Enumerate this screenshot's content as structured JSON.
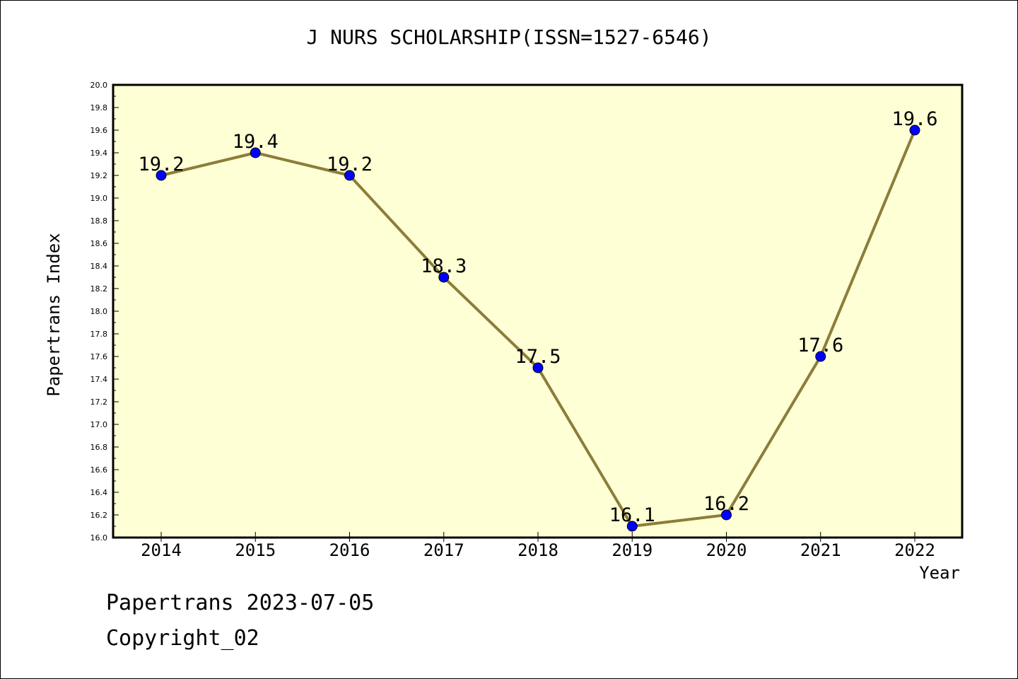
{
  "chart_data": {
    "type": "line",
    "title": "J NURS SCHOLARSHIP(ISSN=1527-6546)",
    "xlabel": "Year",
    "ylabel": "Papertrans Index",
    "categories": [
      "2014",
      "2015",
      "2016",
      "2017",
      "2018",
      "2019",
      "2020",
      "2021",
      "2022"
    ],
    "series": [
      {
        "values": [
          19.2,
          19.4,
          19.2,
          18.3,
          17.5,
          16.1,
          16.2,
          17.6,
          19.6
        ],
        "data_labels": [
          "19.2",
          "19.4",
          "19.2",
          "18.3",
          "17.5",
          "16.1",
          "16.2",
          "17.6",
          "19.6"
        ],
        "line_color": "#8b7d3a",
        "marker_color": "#0000ff"
      }
    ],
    "ylim": [
      16.0,
      20.0
    ],
    "y_ticks": [
      "16.0",
      "16.2",
      "16.4",
      "16.6",
      "16.8",
      "17.0",
      "17.2",
      "17.4",
      "17.6",
      "17.8",
      "18.0",
      "18.2",
      "18.4",
      "18.6",
      "18.8",
      "19.0",
      "19.2",
      "19.4",
      "19.6",
      "19.8",
      "20.0"
    ],
    "grid": false,
    "plot_background": "#ffffd5"
  },
  "footer": {
    "source": "Papertrans 2023-07-05",
    "copyright": "Copyright_02"
  }
}
